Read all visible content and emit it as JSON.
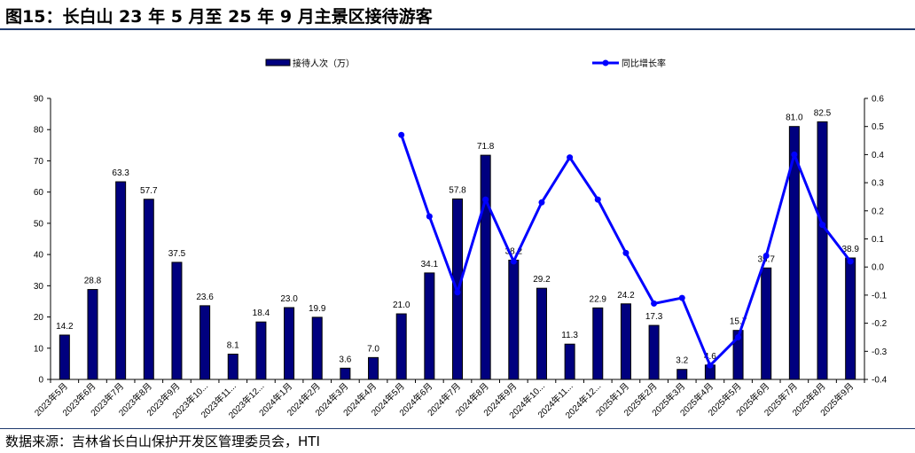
{
  "title": "图15：长白山 23 年 5 月至 25 年 9 月主景区接待游客",
  "source": "数据来源：吉林省长白山保护开发区管理委员会，HTI",
  "chart_data": {
    "type": "bar+line",
    "categories": [
      "2023年5月",
      "2023年6月",
      "2023年7月",
      "2023年8月",
      "2023年9月",
      "2023年10...",
      "2023年11...",
      "2023年12...",
      "2024年1月",
      "2024年2月",
      "2024年3月",
      "2024年4月",
      "2024年5月",
      "2024年6月",
      "2024年7月",
      "2024年8月",
      "2024年9月",
      "2024年10...",
      "2024年11...",
      "2024年12...",
      "2025年1月",
      "2025年2月",
      "2025年3月",
      "2025年4月",
      "2025年5月",
      "2025年6月",
      "2025年7月",
      "2025年8月",
      "2025年9月"
    ],
    "series": [
      {
        "name": "接待人次（万）",
        "type": "bar",
        "axis": "left",
        "color": "#00007f",
        "values": [
          14.2,
          28.8,
          63.3,
          57.7,
          37.5,
          23.6,
          8.1,
          18.4,
          23.0,
          19.9,
          3.6,
          7.0,
          21.0,
          34.1,
          57.8,
          71.8,
          38.2,
          29.2,
          11.3,
          22.9,
          24.2,
          17.3,
          3.2,
          4.6,
          15.7,
          35.7,
          81.0,
          82.5,
          38.9
        ],
        "labels": [
          "14.2",
          "28.8",
          "63.3",
          "57.7",
          "37.5",
          "23.6",
          "8.1",
          "18.4",
          "23.0",
          "19.9",
          "3.6",
          "7.0",
          "21.0",
          "34.1",
          "57.8",
          "71.8",
          "38.2",
          "29.2",
          "11.3",
          "22.9",
          "24.2",
          "17.3",
          "3.2",
          "4.6",
          "15.7",
          "35.7",
          "81.0",
          "82.5",
          "38.9"
        ]
      },
      {
        "name": "同比增长率",
        "type": "line",
        "axis": "right",
        "color": "#0000ff",
        "values": [
          null,
          null,
          null,
          null,
          null,
          null,
          null,
          null,
          null,
          null,
          null,
          null,
          0.47,
          0.18,
          -0.09,
          0.24,
          0.02,
          0.23,
          0.39,
          0.24,
          0.05,
          -0.13,
          -0.11,
          -0.35,
          -0.25,
          0.04,
          0.4,
          0.15,
          0.02
        ]
      }
    ],
    "y_left": {
      "min": 0,
      "max": 90,
      "ticks": [
        "0",
        "10",
        "20",
        "30",
        "40",
        "50",
        "60",
        "70",
        "80",
        "90"
      ]
    },
    "y_right": {
      "min": -0.4,
      "max": 0.6,
      "ticks": [
        "-0.4",
        "-0.3",
        "-0.2",
        "-0.1",
        "0.0",
        "0.1",
        "0.2",
        "0.3",
        "0.4",
        "0.5",
        "0.6"
      ]
    },
    "legend": "top",
    "grid": false
  }
}
